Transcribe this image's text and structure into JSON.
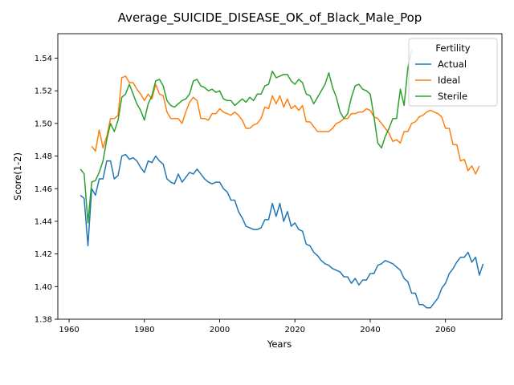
{
  "chart_data": {
    "type": "line",
    "title": "Average_SUICIDE_DISEASE_OK_of_Black_Male_Pop",
    "xlabel": "Years",
    "ylabel": "Score(1-2)",
    "xlim": [
      1957,
      2075
    ],
    "ylim": [
      1.38,
      1.555
    ],
    "xticks": [
      1960,
      1980,
      2000,
      2020,
      2040,
      2060
    ],
    "yticks": [
      1.38,
      1.4,
      1.42,
      1.44,
      1.46,
      1.48,
      1.5,
      1.52,
      1.54
    ],
    "grid": false,
    "legend": {
      "title": "Fertility",
      "position": "top-right"
    },
    "series": [
      {
        "name": "Actual",
        "color": "#1f77b4",
        "points": [
          [
            1963,
            1.456
          ],
          [
            1964,
            1.454
          ],
          [
            1965,
            1.425
          ],
          [
            1966,
            1.46
          ],
          [
            1967,
            1.456
          ],
          [
            1968,
            1.466
          ],
          [
            1969,
            1.466
          ],
          [
            1970,
            1.477
          ],
          [
            1971,
            1.477
          ],
          [
            1972,
            1.466
          ],
          [
            1973,
            1.468
          ],
          [
            1974,
            1.48
          ],
          [
            1975,
            1.481
          ],
          [
            1976,
            1.478
          ],
          [
            1977,
            1.479
          ],
          [
            1978,
            1.477
          ],
          [
            1979,
            1.473
          ],
          [
            1980,
            1.47
          ],
          [
            1981,
            1.477
          ],
          [
            1982,
            1.476
          ],
          [
            1983,
            1.48
          ],
          [
            1984,
            1.477
          ],
          [
            1985,
            1.475
          ],
          [
            1986,
            1.466
          ],
          [
            1987,
            1.464
          ],
          [
            1988,
            1.463
          ],
          [
            1989,
            1.469
          ],
          [
            1990,
            1.464
          ],
          [
            1991,
            1.467
          ],
          [
            1992,
            1.47
          ],
          [
            1993,
            1.469
          ],
          [
            1994,
            1.472
          ],
          [
            1995,
            1.469
          ],
          [
            1996,
            1.466
          ],
          [
            1997,
            1.464
          ],
          [
            1998,
            1.463
          ],
          [
            1999,
            1.464
          ],
          [
            2000,
            1.464
          ],
          [
            2001,
            1.46
          ],
          [
            2002,
            1.458
          ],
          [
            2003,
            1.453
          ],
          [
            2004,
            1.453
          ],
          [
            2005,
            1.446
          ],
          [
            2006,
            1.442
          ],
          [
            2007,
            1.437
          ],
          [
            2008,
            1.436
          ],
          [
            2009,
            1.435
          ],
          [
            2010,
            1.435
          ],
          [
            2011,
            1.436
          ],
          [
            2012,
            1.441
          ],
          [
            2013,
            1.441
          ],
          [
            2014,
            1.451
          ],
          [
            2015,
            1.443
          ],
          [
            2016,
            1.451
          ],
          [
            2017,
            1.44
          ],
          [
            2018,
            1.446
          ],
          [
            2019,
            1.437
          ],
          [
            2020,
            1.439
          ],
          [
            2021,
            1.435
          ],
          [
            2022,
            1.434
          ],
          [
            2023,
            1.426
          ],
          [
            2024,
            1.425
          ],
          [
            2025,
            1.421
          ],
          [
            2026,
            1.419
          ],
          [
            2027,
            1.416
          ],
          [
            2028,
            1.414
          ],
          [
            2029,
            1.413
          ],
          [
            2030,
            1.411
          ],
          [
            2031,
            1.41
          ],
          [
            2032,
            1.409
          ],
          [
            2033,
            1.406
          ],
          [
            2034,
            1.406
          ],
          [
            2035,
            1.402
          ],
          [
            2036,
            1.405
          ],
          [
            2037,
            1.401
          ],
          [
            2038,
            1.404
          ],
          [
            2039,
            1.404
          ],
          [
            2040,
            1.408
          ],
          [
            2041,
            1.408
          ],
          [
            2042,
            1.413
          ],
          [
            2043,
            1.414
          ],
          [
            2044,
            1.416
          ],
          [
            2045,
            1.415
          ],
          [
            2046,
            1.414
          ],
          [
            2047,
            1.412
          ],
          [
            2048,
            1.41
          ],
          [
            2049,
            1.405
          ],
          [
            2050,
            1.403
          ],
          [
            2051,
            1.396
          ],
          [
            2052,
            1.396
          ],
          [
            2053,
            1.389
          ],
          [
            2054,
            1.389
          ],
          [
            2055,
            1.387
          ],
          [
            2056,
            1.387
          ],
          [
            2057,
            1.39
          ],
          [
            2058,
            1.393
          ],
          [
            2059,
            1.399
          ],
          [
            2060,
            1.402
          ],
          [
            2061,
            1.408
          ],
          [
            2062,
            1.411
          ],
          [
            2063,
            1.415
          ],
          [
            2064,
            1.418
          ],
          [
            2065,
            1.418
          ],
          [
            2066,
            1.421
          ],
          [
            2067,
            1.415
          ],
          [
            2068,
            1.418
          ],
          [
            2069,
            1.407
          ],
          [
            2070,
            1.414
          ]
        ]
      },
      {
        "name": "Ideal",
        "color": "#ff7f0e",
        "points": [
          [
            1966,
            1.486
          ],
          [
            1967,
            1.483
          ],
          [
            1968,
            1.496
          ],
          [
            1969,
            1.485
          ],
          [
            1970,
            1.492
          ],
          [
            1971,
            1.503
          ],
          [
            1972,
            1.503
          ],
          [
            1973,
            1.505
          ],
          [
            1974,
            1.528
          ],
          [
            1975,
            1.529
          ],
          [
            1976,
            1.525
          ],
          [
            1977,
            1.525
          ],
          [
            1978,
            1.521
          ],
          [
            1979,
            1.518
          ],
          [
            1980,
            1.514
          ],
          [
            1981,
            1.518
          ],
          [
            1982,
            1.515
          ],
          [
            1983,
            1.524
          ],
          [
            1984,
            1.518
          ],
          [
            1985,
            1.517
          ],
          [
            1986,
            1.507
          ],
          [
            1987,
            1.503
          ],
          [
            1988,
            1.503
          ],
          [
            1989,
            1.503
          ],
          [
            1990,
            1.5
          ],
          [
            1991,
            1.507
          ],
          [
            1992,
            1.513
          ],
          [
            1993,
            1.516
          ],
          [
            1994,
            1.514
          ],
          [
            1995,
            1.503
          ],
          [
            1996,
            1.503
          ],
          [
            1997,
            1.502
          ],
          [
            1998,
            1.506
          ],
          [
            1999,
            1.506
          ],
          [
            2000,
            1.509
          ],
          [
            2001,
            1.507
          ],
          [
            2002,
            1.506
          ],
          [
            2003,
            1.505
          ],
          [
            2004,
            1.507
          ],
          [
            2005,
            1.505
          ],
          [
            2006,
            1.502
          ],
          [
            2007,
            1.497
          ],
          [
            2008,
            1.497
          ],
          [
            2009,
            1.499
          ],
          [
            2010,
            1.5
          ],
          [
            2011,
            1.503
          ],
          [
            2012,
            1.51
          ],
          [
            2013,
            1.509
          ],
          [
            2014,
            1.517
          ],
          [
            2015,
            1.512
          ],
          [
            2016,
            1.517
          ],
          [
            2017,
            1.51
          ],
          [
            2018,
            1.515
          ],
          [
            2019,
            1.509
          ],
          [
            2020,
            1.511
          ],
          [
            2021,
            1.508
          ],
          [
            2022,
            1.511
          ],
          [
            2023,
            1.501
          ],
          [
            2024,
            1.501
          ],
          [
            2025,
            1.498
          ],
          [
            2026,
            1.495
          ],
          [
            2027,
            1.495
          ],
          [
            2028,
            1.495
          ],
          [
            2029,
            1.495
          ],
          [
            2030,
            1.497
          ],
          [
            2031,
            1.5
          ],
          [
            2032,
            1.501
          ],
          [
            2033,
            1.503
          ],
          [
            2034,
            1.503
          ],
          [
            2035,
            1.506
          ],
          [
            2036,
            1.506
          ],
          [
            2037,
            1.507
          ],
          [
            2038,
            1.507
          ],
          [
            2039,
            1.509
          ],
          [
            2040,
            1.508
          ],
          [
            2041,
            1.504
          ],
          [
            2042,
            1.503
          ],
          [
            2043,
            1.5
          ],
          [
            2044,
            1.497
          ],
          [
            2045,
            1.494
          ],
          [
            2046,
            1.489
          ],
          [
            2047,
            1.49
          ],
          [
            2048,
            1.488
          ],
          [
            2049,
            1.495
          ],
          [
            2050,
            1.495
          ],
          [
            2051,
            1.5
          ],
          [
            2052,
            1.501
          ],
          [
            2053,
            1.504
          ],
          [
            2054,
            1.505
          ],
          [
            2055,
            1.507
          ],
          [
            2056,
            1.508
          ],
          [
            2057,
            1.507
          ],
          [
            2058,
            1.506
          ],
          [
            2059,
            1.504
          ],
          [
            2060,
            1.497
          ],
          [
            2061,
            1.497
          ],
          [
            2062,
            1.487
          ],
          [
            2063,
            1.487
          ],
          [
            2064,
            1.477
          ],
          [
            2065,
            1.478
          ],
          [
            2066,
            1.471
          ],
          [
            2067,
            1.474
          ],
          [
            2068,
            1.469
          ],
          [
            2069,
            1.474
          ]
        ]
      },
      {
        "name": "Sterile",
        "color": "#2ca02c",
        "points": [
          [
            1963,
            1.472
          ],
          [
            1964,
            1.469
          ],
          [
            1965,
            1.439
          ],
          [
            1966,
            1.464
          ],
          [
            1967,
            1.465
          ],
          [
            1968,
            1.47
          ],
          [
            1969,
            1.477
          ],
          [
            1970,
            1.49
          ],
          [
            1971,
            1.5
          ],
          [
            1972,
            1.495
          ],
          [
            1973,
            1.502
          ],
          [
            1974,
            1.516
          ],
          [
            1975,
            1.518
          ],
          [
            1976,
            1.524
          ],
          [
            1977,
            1.518
          ],
          [
            1978,
            1.512
          ],
          [
            1979,
            1.508
          ],
          [
            1980,
            1.502
          ],
          [
            1981,
            1.512
          ],
          [
            1982,
            1.517
          ],
          [
            1983,
            1.526
          ],
          [
            1984,
            1.527
          ],
          [
            1985,
            1.523
          ],
          [
            1986,
            1.514
          ],
          [
            1987,
            1.511
          ],
          [
            1988,
            1.51
          ],
          [
            1989,
            1.512
          ],
          [
            1990,
            1.514
          ],
          [
            1991,
            1.515
          ],
          [
            1992,
            1.518
          ],
          [
            1993,
            1.526
          ],
          [
            1994,
            1.527
          ],
          [
            1995,
            1.523
          ],
          [
            1996,
            1.522
          ],
          [
            1997,
            1.52
          ],
          [
            1998,
            1.521
          ],
          [
            1999,
            1.519
          ],
          [
            2000,
            1.52
          ],
          [
            2001,
            1.515
          ],
          [
            2002,
            1.514
          ],
          [
            2003,
            1.514
          ],
          [
            2004,
            1.511
          ],
          [
            2005,
            1.513
          ],
          [
            2006,
            1.515
          ],
          [
            2007,
            1.513
          ],
          [
            2008,
            1.516
          ],
          [
            2009,
            1.514
          ],
          [
            2010,
            1.518
          ],
          [
            2011,
            1.518
          ],
          [
            2012,
            1.523
          ],
          [
            2013,
            1.524
          ],
          [
            2014,
            1.532
          ],
          [
            2015,
            1.528
          ],
          [
            2016,
            1.529
          ],
          [
            2017,
            1.53
          ],
          [
            2018,
            1.53
          ],
          [
            2019,
            1.526
          ],
          [
            2020,
            1.524
          ],
          [
            2021,
            1.527
          ],
          [
            2022,
            1.525
          ],
          [
            2023,
            1.518
          ],
          [
            2024,
            1.517
          ],
          [
            2025,
            1.512
          ],
          [
            2026,
            1.516
          ],
          [
            2027,
            1.52
          ],
          [
            2028,
            1.524
          ],
          [
            2029,
            1.531
          ],
          [
            2030,
            1.522
          ],
          [
            2031,
            1.516
          ],
          [
            2032,
            1.507
          ],
          [
            2033,
            1.503
          ],
          [
            2034,
            1.506
          ],
          [
            2035,
            1.516
          ],
          [
            2036,
            1.523
          ],
          [
            2037,
            1.524
          ],
          [
            2038,
            1.521
          ],
          [
            2039,
            1.52
          ],
          [
            2040,
            1.518
          ],
          [
            2041,
            1.504
          ],
          [
            2042,
            1.488
          ],
          [
            2043,
            1.485
          ],
          [
            2044,
            1.492
          ],
          [
            2045,
            1.497
          ],
          [
            2046,
            1.503
          ],
          [
            2047,
            1.503
          ],
          [
            2048,
            1.521
          ],
          [
            2049,
            1.511
          ],
          [
            2050,
            1.534
          ],
          [
            2051,
            1.545
          ]
        ]
      }
    ]
  }
}
